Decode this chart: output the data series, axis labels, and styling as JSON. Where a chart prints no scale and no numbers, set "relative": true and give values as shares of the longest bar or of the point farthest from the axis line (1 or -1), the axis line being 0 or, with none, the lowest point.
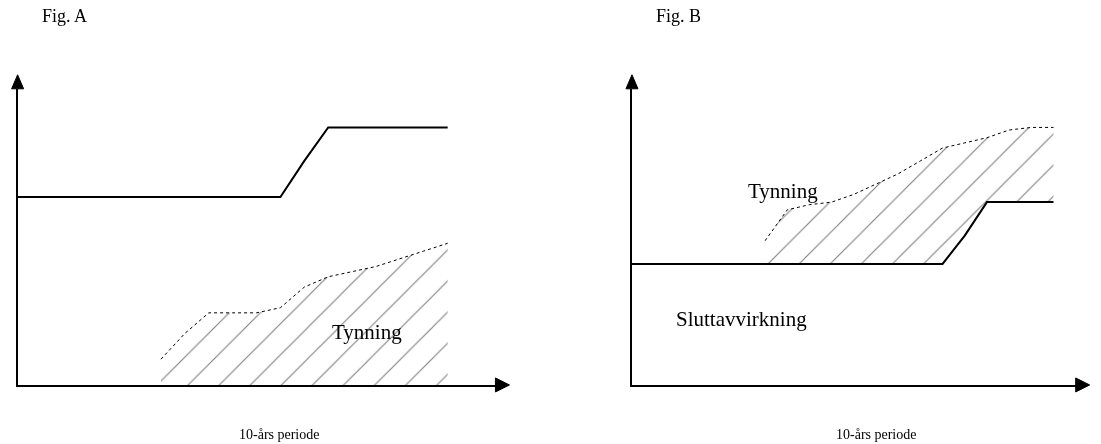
{
  "chart_data": [
    {
      "type": "line",
      "title": "Fig. A",
      "xlabel": "10-års periode",
      "relative": true,
      "categories": [
        null,
        null,
        null,
        null,
        null,
        null,
        null,
        null,
        null,
        null,
        null,
        null,
        null,
        null,
        null,
        null,
        null,
        null,
        null,
        null
      ],
      "annotations": [
        "Tynning"
      ],
      "series": [
        {
          "type": "area",
          "color": "#000000",
          "line_style": "dotted",
          "values": [
            null,
            null,
            null,
            null,
            null,
            null,
            0.1,
            0.2,
            0.28,
            0.28,
            0.28,
            0.3,
            0.38,
            0.42,
            0.44,
            0.46,
            0.49,
            0.52,
            0.55,
            null
          ]
        },
        {
          "color": "#000000",
          "line_style": "solid",
          "values": [
            0.73,
            0.73,
            0.73,
            0.73,
            0.73,
            0.73,
            0.73,
            0.73,
            0.73,
            0.73,
            0.73,
            0.73,
            0.87,
            1.0,
            1.0,
            1.0,
            1.0,
            1.0,
            1.0,
            null
          ]
        }
      ]
    },
    {
      "type": "line",
      "title": "Fig. B",
      "xlabel": "10-års periode",
      "relative": true,
      "categories": [
        null,
        null,
        null,
        null,
        null,
        null,
        null,
        null,
        null,
        null,
        null,
        null,
        null,
        null,
        null,
        null,
        null,
        null,
        null,
        null
      ],
      "annotations": [
        "Tynning",
        "Sluttavvirkning"
      ],
      "series": [
        {
          "color": "#000000",
          "line_style": "solid",
          "values": [
            0.47,
            0.47,
            0.47,
            0.47,
            0.47,
            0.47,
            0.47,
            0.47,
            0.47,
            0.47,
            0.47,
            0.47,
            0.47,
            0.47,
            0.47,
            0.58,
            0.71,
            0.71,
            0.71,
            0.71
          ]
        },
        {
          "type": "area",
          "color": "#000000",
          "line_style": "dotted",
          "values": [
            null,
            null,
            null,
            null,
            null,
            null,
            0.56,
            0.68,
            0.7,
            0.71,
            0.74,
            0.78,
            0.82,
            0.87,
            0.92,
            0.94,
            0.96,
            0.99,
            1.0,
            1.0
          ]
        }
      ]
    }
  ]
}
